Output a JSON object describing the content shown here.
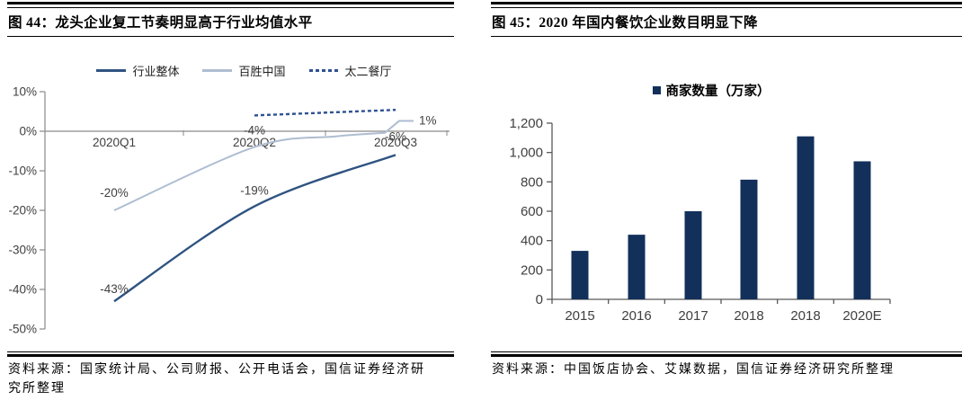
{
  "left_panel": {
    "title": "图 44：龙头企业复工节奏明显高于行业均值水平",
    "source": "资料来源：国家统计局、公司财报、公开电话会，国信证券经济研究所整理"
  },
  "right_panel": {
    "title": "图 45：2020 年国内餐饮企业数目明显下降",
    "source": "资料来源：中国饭店协会、艾媒数据，国信证券经济研究所整理"
  },
  "colors": {
    "industry_line": "#2F5380",
    "yumchina_line": "#AEBDD1",
    "taier_line": "#2E5191",
    "bar": "#12305A",
    "axis_gray": "#8a8a8a",
    "axis_dark": "#595959",
    "tick_text": "#404040"
  },
  "chart_data": [
    {
      "type": "line",
      "title": "龙头企业复工节奏明显高于行业均值水平",
      "categories": [
        "2020Q1",
        "2020Q2",
        "2020Q3"
      ],
      "series": [
        {
          "name": "行业整体",
          "line_style": "solid",
          "color": "#2F5380",
          "values": [
            -43,
            -19,
            -6
          ],
          "point_labels": [
            "-43%",
            "-19%",
            "-6%"
          ]
        },
        {
          "name": "百胜中国",
          "line_style": "solid",
          "color": "#AEBDD1",
          "values": [
            -20,
            -4,
            1
          ],
          "point_labels": [
            "-20%",
            "-4%",
            "1%"
          ]
        },
        {
          "name": "太二餐厅",
          "line_style": "dashed",
          "color": "#2E5191",
          "values": [
            null,
            4,
            5
          ],
          "point_labels": [
            "",
            "",
            ""
          ]
        }
      ],
      "ylim": [
        -50,
        10
      ],
      "yticks": [
        "10%",
        "0%",
        "-10%",
        "-20%",
        "-30%",
        "-40%",
        "-50%"
      ],
      "unit": "%",
      "grid": false,
      "legend_position": "top"
    },
    {
      "type": "bar",
      "title": "2020 年国内餐饮企业数目明显下降",
      "legend": "商家数量（万家）",
      "categories": [
        "2015",
        "2016",
        "2017",
        "2018",
        "2018",
        "2020E"
      ],
      "values": [
        330,
        440,
        600,
        815,
        1110,
        940
      ],
      "ylim": [
        0,
        1200
      ],
      "yticks": [
        "0",
        "200",
        "400",
        "600",
        "800",
        "1,000",
        "1,200"
      ],
      "bar_color": "#12305A",
      "grid": false,
      "legend_position": "top"
    }
  ]
}
